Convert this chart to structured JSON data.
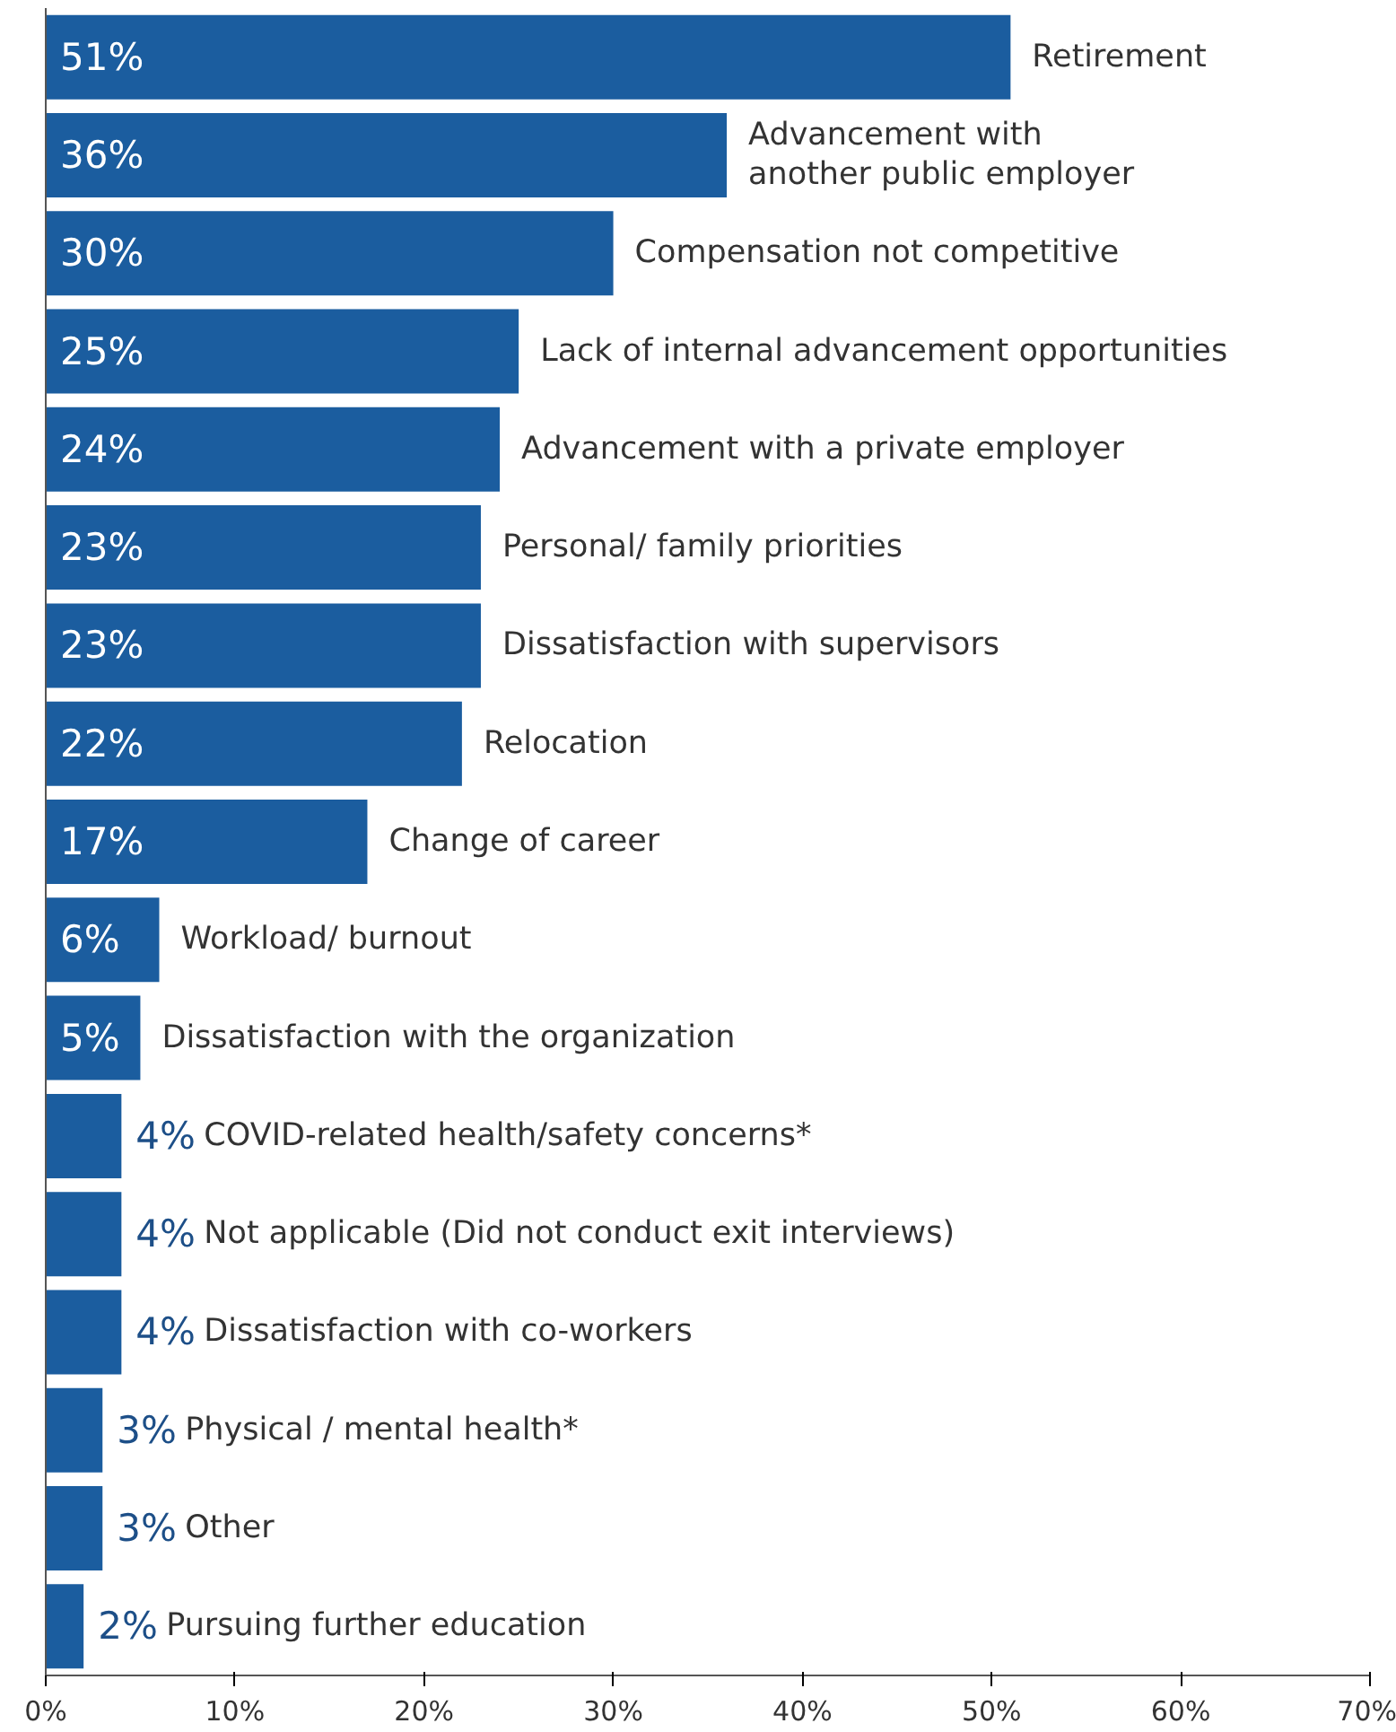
{
  "chart_data": {
    "type": "bar",
    "orientation": "horizontal",
    "tick_labels": "x",
    "grid": false,
    "legend": false,
    "categories": [
      "Retirement",
      "Advancement with\nanother public employer",
      "Compensation not competitive",
      "Lack of internal advancement opportunities",
      "Advancement with a private employer",
      "Personal/ family priorities",
      "Dissatisfaction with supervisors",
      "Relocation",
      "Change of career",
      "Workload/ burnout",
      "Dissatisfaction with the organization",
      "COVID-related health/safety concerns*",
      "Not applicable (Did not conduct exit interviews)",
      "Dissatisfaction with co-workers",
      "Physical / mental health*",
      "Other",
      "Pursuing further education"
    ],
    "values": [
      51,
      36,
      30,
      25,
      24,
      23,
      23,
      22,
      17,
      6,
      5,
      4,
      4,
      4,
      3,
      3,
      2
    ],
    "value_labels": [
      "51%",
      "36%",
      "30%",
      "25%",
      "24%",
      "23%",
      "23%",
      "22%",
      "17%",
      "6%",
      "5%",
      "4%",
      "4%",
      "4%",
      "3%",
      "3%",
      "2%"
    ],
    "color": "#1b5d9f",
    "xlim": [
      0,
      70
    ],
    "xticks": [
      {
        "value": 0,
        "label": "0%"
      },
      {
        "value": 10,
        "label": "10%"
      },
      {
        "value": 20,
        "label": "20%"
      },
      {
        "value": 30,
        "label": "30%"
      },
      {
        "value": 40,
        "label": "40%"
      },
      {
        "value": 50,
        "label": "50%"
      },
      {
        "value": 60,
        "label": "60%"
      },
      {
        "value": 70,
        "label": "70%"
      }
    ]
  }
}
